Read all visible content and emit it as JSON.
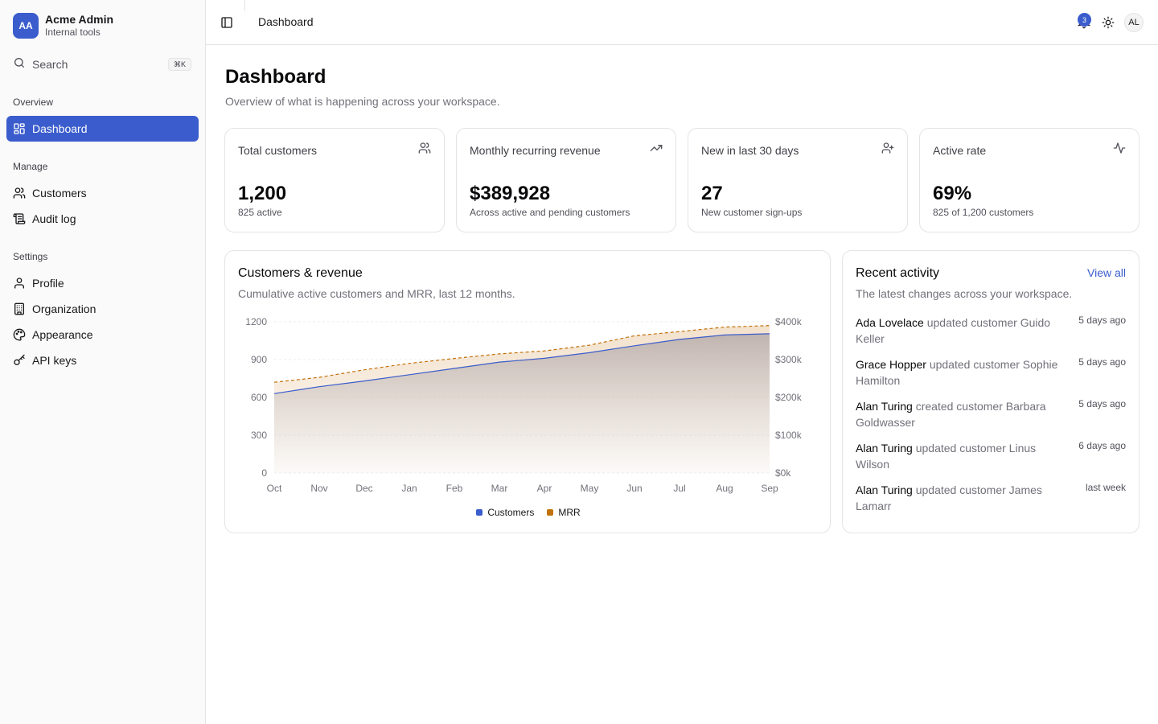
{
  "brand": {
    "initials": "AA",
    "name": "Acme Admin",
    "subtitle": "Internal tools"
  },
  "search": {
    "label": "Search",
    "shortcut": "⌘K"
  },
  "sidebar": {
    "groups": [
      {
        "label": "Overview",
        "items": [
          {
            "label": "Dashboard",
            "icon": "dashboard-icon",
            "active": true
          }
        ]
      },
      {
        "label": "Manage",
        "items": [
          {
            "label": "Customers",
            "icon": "users-icon"
          },
          {
            "label": "Audit log",
            "icon": "scroll-icon"
          }
        ]
      },
      {
        "label": "Settings",
        "items": [
          {
            "label": "Profile",
            "icon": "user-icon"
          },
          {
            "label": "Organization",
            "icon": "building-icon"
          },
          {
            "label": "Appearance",
            "icon": "palette-icon"
          },
          {
            "label": "API keys",
            "icon": "key-icon"
          }
        ]
      }
    ]
  },
  "header": {
    "title": "Dashboard",
    "notification_count": "3",
    "user_initials": "AL"
  },
  "page": {
    "title": "Dashboard",
    "subtitle": "Overview of what is happening across your workspace."
  },
  "stats": [
    {
      "label": "Total customers",
      "value": "1,200",
      "note": "825 active",
      "icon": "users-icon"
    },
    {
      "label": "Monthly recurring revenue",
      "value": "$389,928",
      "note": "Across active and pending customers",
      "icon": "trending-up-icon"
    },
    {
      "label": "New in last 30 days",
      "value": "27",
      "note": "New customer sign-ups",
      "icon": "user-plus-icon"
    },
    {
      "label": "Active rate",
      "value": "69%",
      "note": "825 of 1,200 customers",
      "icon": "activity-icon"
    }
  ],
  "chart_card": {
    "title": "Customers & revenue",
    "description": "Cumulative active customers and MRR, last 12 months."
  },
  "chart_data": {
    "type": "area",
    "title": "Customers & revenue",
    "categories": [
      "Oct",
      "Nov",
      "Dec",
      "Jan",
      "Feb",
      "Mar",
      "Apr",
      "May",
      "Jun",
      "Jul",
      "Aug",
      "Sep"
    ],
    "y_left": {
      "ticks": [
        "0",
        "300",
        "600",
        "900",
        "1200"
      ],
      "range": [
        0,
        1200
      ]
    },
    "y_right": {
      "ticks": [
        "$0k",
        "$100k",
        "$200k",
        "$300k",
        "$400k"
      ],
      "range": [
        0,
        400000
      ]
    },
    "grid": true,
    "legend_position": "bottom",
    "series": [
      {
        "name": "Customers",
        "axis": "left",
        "color": "#3a5ccc",
        "values": [
          630,
          685,
          730,
          780,
          830,
          880,
          910,
          955,
          1010,
          1060,
          1095,
          1105
        ]
      },
      {
        "name": "MRR",
        "axis": "right",
        "color": "#c2720c",
        "values": [
          240000,
          253000,
          273000,
          290000,
          303000,
          315000,
          323000,
          338000,
          363000,
          374000,
          386000,
          390000
        ]
      }
    ]
  },
  "activity": {
    "title": "Recent activity",
    "view_all": "View all",
    "description": "The latest changes across your workspace.",
    "items": [
      {
        "actor": "Ada Lovelace",
        "text": " updated customer Guido Keller",
        "time": "5 days ago"
      },
      {
        "actor": "Grace Hopper",
        "text": " updated customer Sophie Hamilton",
        "time": "5 days ago"
      },
      {
        "actor": "Alan Turing",
        "text": " created customer Barbara Goldwasser",
        "time": "5 days ago"
      },
      {
        "actor": "Alan Turing",
        "text": " updated customer Linus Wilson",
        "time": "6 days ago"
      },
      {
        "actor": "Alan Turing",
        "text": " updated customer James Lamarr",
        "time": "last week"
      }
    ]
  }
}
